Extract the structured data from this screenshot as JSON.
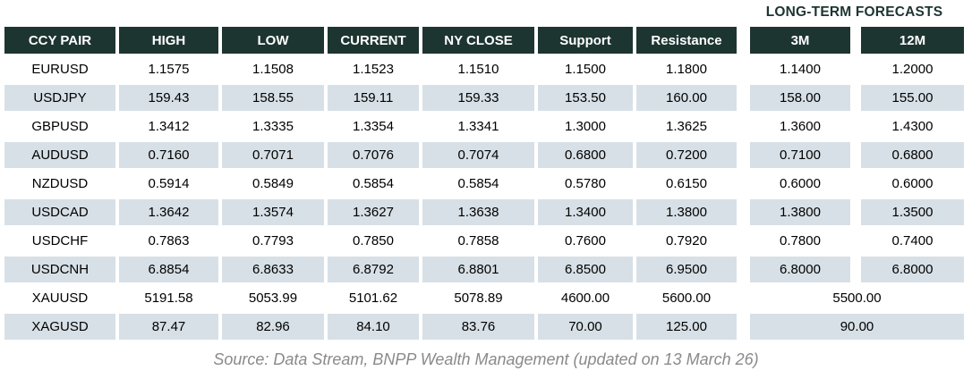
{
  "forecast_label": "LONG-TERM FORECASTS",
  "table": {
    "columns": [
      "CCY PAIR",
      "HIGH",
      "LOW",
      "CURRENT",
      "NY CLOSE",
      "Support",
      "Resistance",
      "3M",
      "12M"
    ],
    "rows": [
      {
        "shaded": false,
        "cells": [
          "EURUSD",
          "1.1575",
          "1.1508",
          "1.1523",
          "1.1510",
          "1.1500",
          "1.1800",
          "1.1400",
          "1.2000"
        ]
      },
      {
        "shaded": true,
        "cells": [
          "USDJPY",
          "159.43",
          "158.55",
          "159.11",
          "159.33",
          "153.50",
          "160.00",
          "158.00",
          "155.00"
        ]
      },
      {
        "shaded": false,
        "cells": [
          "GBPUSD",
          "1.3412",
          "1.3335",
          "1.3354",
          "1.3341",
          "1.3000",
          "1.3625",
          "1.3600",
          "1.4300"
        ]
      },
      {
        "shaded": true,
        "cells": [
          "AUDUSD",
          "0.7160",
          "0.7071",
          "0.7076",
          "0.7074",
          "0.6800",
          "0.7200",
          "0.7100",
          "0.6800"
        ]
      },
      {
        "shaded": false,
        "cells": [
          "NZDUSD",
          "0.5914",
          "0.5849",
          "0.5854",
          "0.5854",
          "0.5780",
          "0.6150",
          "0.6000",
          "0.6000"
        ]
      },
      {
        "shaded": true,
        "cells": [
          "USDCAD",
          "1.3642",
          "1.3574",
          "1.3627",
          "1.3638",
          "1.3400",
          "1.3800",
          "1.3800",
          "1.3500"
        ]
      },
      {
        "shaded": false,
        "cells": [
          "USDCHF",
          "0.7863",
          "0.7793",
          "0.7850",
          "0.7858",
          "0.7600",
          "0.7920",
          "0.7800",
          "0.7400"
        ]
      },
      {
        "shaded": true,
        "cells": [
          "USDCNH",
          "6.8854",
          "6.8633",
          "6.8792",
          "6.8801",
          "6.8500",
          "6.9500",
          "6.8000",
          "6.8000"
        ]
      },
      {
        "shaded": false,
        "span_last": true,
        "cells": [
          "XAUUSD",
          "5191.58",
          "5053.99",
          "5101.62",
          "5078.89",
          "4600.00",
          "5600.00",
          "5500.00"
        ]
      },
      {
        "shaded": true,
        "span_last": true,
        "cells": [
          "XAGUSD",
          "87.47",
          "82.96",
          "84.10",
          "83.76",
          "70.00",
          "125.00",
          "90.00"
        ]
      }
    ]
  },
  "source": "Source: Data Stream, BNPP Wealth Management (updated on 13 March 26)",
  "colors": {
    "header_bg": "#1d3531",
    "row_alt_bg": "#d7e0e6",
    "forecast_label_color": "#1d3531",
    "source_color": "#8a8a8a"
  }
}
